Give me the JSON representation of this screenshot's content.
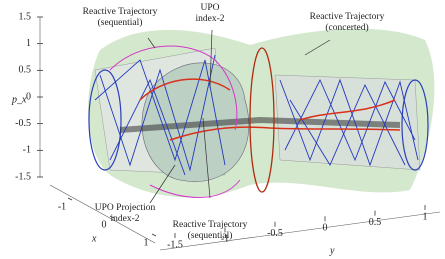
{
  "chart_data": {
    "type": "surface3d",
    "annotations": [
      {
        "lines": [
          "Reactive Trajectory",
          "(sequential)"
        ]
      },
      {
        "lines": [
          "UPO",
          "index-2"
        ]
      },
      {
        "lines": [
          "Reactive Trajectory",
          "(concerted)"
        ]
      },
      {
        "lines": [
          "UPO Projection",
          "index-2"
        ]
      },
      {
        "lines": [
          "Reactive Trajectory",
          "(sequential)"
        ]
      }
    ],
    "zlabel": "p_x",
    "xlabel": "x",
    "ylabel": "y",
    "zlim": [
      -1.5,
      1.5
    ],
    "zticks": [
      1.5,
      1,
      0.5,
      0,
      -0.5,
      -1,
      -1.5
    ],
    "xlim": [
      -1,
      1
    ],
    "xticks": [
      -1,
      0,
      1
    ],
    "ylim": [
      -1.5,
      1
    ],
    "yticks": [
      -1.5,
      -1,
      -0.5,
      0,
      0.5,
      1
    ]
  }
}
